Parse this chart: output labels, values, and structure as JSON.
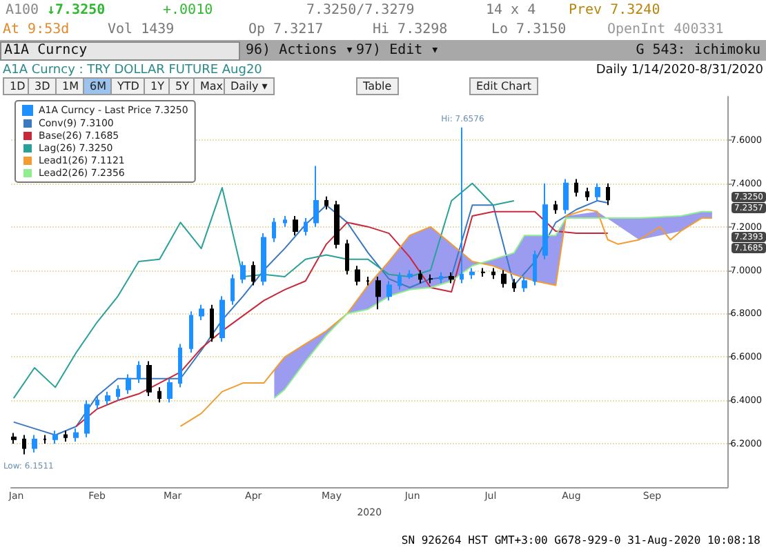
{
  "chart_data": {
    "type": "candlestick",
    "title": "A1A Curncy : TRY DOLLAR FUTURE Aug20",
    "subtitle": "Daily 1/14/2020-8/31/2020",
    "xlabel": "2020",
    "x": [
      "2020-01-14",
      "2020-01-18",
      "2020-01-22",
      "2020-01-26",
      "2020-01-30",
      "2020-02-03",
      "2020-02-07",
      "2020-02-11",
      "2020-02-15",
      "2020-02-19",
      "2020-02-23",
      "2020-02-27",
      "2020-03-02",
      "2020-03-06",
      "2020-03-10",
      "2020-03-14",
      "2020-03-18",
      "2020-03-22",
      "2020-03-26",
      "2020-03-30",
      "2020-04-03",
      "2020-04-07",
      "2020-04-11",
      "2020-04-15",
      "2020-04-19",
      "2020-04-23",
      "2020-04-27",
      "2020-05-01",
      "2020-05-05",
      "2020-05-09",
      "2020-05-13",
      "2020-05-17",
      "2020-05-21",
      "2020-05-25",
      "2020-05-29",
      "2020-06-02",
      "2020-06-06",
      "2020-06-10",
      "2020-06-14",
      "2020-06-18",
      "2020-06-22",
      "2020-06-26",
      "2020-06-30",
      "2020-07-04",
      "2020-07-08",
      "2020-07-12",
      "2020-07-16",
      "2020-07-20",
      "2020-07-24",
      "2020-07-28",
      "2020-08-01",
      "2020-08-05",
      "2020-08-09",
      "2020-08-13",
      "2020-08-17",
      "2020-08-21",
      "2020-08-25",
      "2020-08-29"
    ],
    "series": [
      {
        "name": "A1A Curncy - Last Price 7.3250",
        "color": "#1e90ff",
        "ohlc": [
          [
            6.23,
            6.25,
            6.2,
            6.22
          ],
          [
            6.22,
            6.24,
            6.1511,
            6.18
          ],
          [
            6.18,
            6.24,
            6.16,
            6.22
          ],
          [
            6.22,
            6.24,
            6.2,
            6.22
          ],
          [
            6.22,
            6.26,
            6.2,
            6.24
          ],
          [
            6.24,
            6.26,
            6.21,
            6.23
          ],
          [
            6.23,
            6.27,
            6.21,
            6.25
          ],
          [
            6.25,
            6.4,
            6.23,
            6.38
          ],
          [
            6.38,
            6.42,
            6.36,
            6.4
          ],
          [
            6.4,
            6.44,
            6.38,
            6.42
          ],
          [
            6.42,
            6.47,
            6.4,
            6.45
          ],
          [
            6.45,
            6.52,
            6.43,
            6.5
          ],
          [
            6.5,
            6.58,
            6.48,
            6.56
          ],
          [
            6.56,
            6.58,
            6.42,
            6.44
          ],
          [
            6.44,
            6.46,
            6.39,
            6.41
          ],
          [
            6.41,
            6.5,
            6.39,
            6.48
          ],
          [
            6.48,
            6.66,
            6.46,
            6.64
          ],
          [
            6.64,
            6.81,
            6.62,
            6.79
          ],
          [
            6.79,
            6.84,
            6.77,
            6.82
          ],
          [
            6.82,
            6.84,
            6.67,
            6.69
          ],
          [
            6.69,
            6.88,
            6.67,
            6.86
          ],
          [
            6.86,
            6.98,
            6.84,
            6.96
          ],
          [
            6.96,
            7.04,
            6.94,
            7.02
          ],
          [
            7.02,
            7.04,
            6.93,
            6.95
          ],
          [
            6.95,
            7.17,
            6.93,
            7.15
          ],
          [
            7.15,
            7.24,
            7.13,
            7.22
          ],
          [
            7.22,
            7.25,
            7.2,
            7.23
          ],
          [
            7.23,
            7.25,
            7.16,
            7.18
          ],
          [
            7.18,
            7.24,
            7.16,
            7.22
          ],
          [
            7.22,
            7.48,
            7.2,
            7.32
          ],
          [
            7.32,
            7.34,
            7.28,
            7.3
          ],
          [
            7.3,
            7.32,
            7.1,
            7.12
          ],
          [
            7.12,
            7.14,
            6.98,
            7.0
          ],
          [
            7.0,
            7.02,
            6.93,
            6.95
          ],
          [
            6.95,
            6.97,
            6.93,
            6.95
          ],
          [
            6.95,
            6.97,
            6.82,
            6.88
          ],
          [
            6.88,
            6.95,
            6.86,
            6.93
          ],
          [
            6.93,
            6.99,
            6.91,
            6.97
          ],
          [
            6.97,
            7.0,
            6.96,
            6.98
          ],
          [
            6.98,
            7.0,
            6.94,
            6.96
          ],
          [
            6.96,
            6.98,
            6.94,
            6.96
          ],
          [
            6.96,
            6.99,
            6.94,
            6.97
          ],
          [
            6.97,
            6.99,
            6.94,
            6.96
          ],
          [
            6.96,
            7.6576,
            6.94,
            6.98
          ],
          [
            6.98,
            7.01,
            6.96,
            6.99
          ],
          [
            6.99,
            7.01,
            6.97,
            6.99
          ],
          [
            6.99,
            7.01,
            6.96,
            6.98
          ],
          [
            6.98,
            7.0,
            6.92,
            6.94
          ],
          [
            6.94,
            6.96,
            6.9,
            6.92
          ],
          [
            6.92,
            6.97,
            6.9,
            6.95
          ],
          [
            6.95,
            7.09,
            6.93,
            7.07
          ],
          [
            7.07,
            7.4,
            7.05,
            7.3
          ],
          [
            7.3,
            7.32,
            7.26,
            7.28
          ],
          [
            7.28,
            7.42,
            7.26,
            7.4
          ],
          [
            7.4,
            7.42,
            7.34,
            7.36
          ],
          [
            7.36,
            7.38,
            7.32,
            7.34
          ],
          [
            7.34,
            7.4,
            7.32,
            7.38
          ],
          [
            7.38,
            7.4,
            7.3,
            7.325
          ]
        ],
        "colors": [
          "#000000",
          "#000000",
          "#1e90ff",
          "#000000",
          "#1e90ff",
          "#000000",
          "#1e90ff",
          "#1e90ff",
          "#1e90ff",
          "#1e90ff",
          "#1e90ff",
          "#1e90ff",
          "#1e90ff",
          "#000000",
          "#000000",
          "#1e90ff",
          "#1e90ff",
          "#1e90ff",
          "#1e90ff",
          "#000000",
          "#1e90ff",
          "#1e90ff",
          "#1e90ff",
          "#000000",
          "#1e90ff",
          "#1e90ff",
          "#1e90ff",
          "#000000",
          "#1e90ff",
          "#1e90ff",
          "#000000",
          "#000000",
          "#000000",
          "#000000",
          "#000000",
          "#000000",
          "#1e90ff",
          "#1e90ff",
          "#1e90ff",
          "#000000",
          "#000000",
          "#1e90ff",
          "#000000",
          "#1e90ff",
          "#1e90ff",
          "#000000",
          "#000000",
          "#000000",
          "#000000",
          "#1e90ff",
          "#1e90ff",
          "#1e90ff",
          "#000000",
          "#1e90ff",
          "#000000",
          "#000000",
          "#1e90ff",
          "#000000"
        ]
      },
      {
        "type": "line",
        "name": "Conv(9) 7.3100",
        "color": "#3a78c2",
        "x": [
          "2020-01-14",
          "2020-01-22",
          "2020-01-30",
          "2020-02-07",
          "2020-02-15",
          "2020-02-23",
          "2020-03-02",
          "2020-03-10",
          "2020-03-18",
          "2020-03-26",
          "2020-04-03",
          "2020-04-11",
          "2020-04-19",
          "2020-04-27",
          "2020-05-05",
          "2020-05-13",
          "2020-05-21",
          "2020-05-29",
          "2020-06-06",
          "2020-06-14",
          "2020-06-22",
          "2020-06-30",
          "2020-07-08",
          "2020-07-16",
          "2020-07-24",
          "2020-08-01",
          "2020-08-09",
          "2020-08-17",
          "2020-08-25",
          "2020-08-29"
        ],
        "values": [
          6.3,
          6.27,
          6.24,
          6.28,
          6.42,
          6.5,
          6.5,
          6.5,
          6.5,
          6.63,
          6.77,
          6.88,
          7.0,
          7.1,
          7.21,
          7.3,
          7.22,
          7.08,
          6.96,
          6.92,
          6.96,
          6.97,
          7.3,
          7.3,
          6.93,
          7.04,
          7.22,
          7.28,
          7.32,
          7.31
        ]
      },
      {
        "type": "line",
        "name": "Base(26) 7.1685",
        "color": "#c8283c",
        "x": [
          "2020-02-07",
          "2020-02-15",
          "2020-02-23",
          "2020-03-02",
          "2020-03-10",
          "2020-03-18",
          "2020-03-26",
          "2020-04-03",
          "2020-04-11",
          "2020-04-19",
          "2020-04-27",
          "2020-05-05",
          "2020-05-13",
          "2020-05-21",
          "2020-05-29",
          "2020-06-06",
          "2020-06-14",
          "2020-06-22",
          "2020-06-30",
          "2020-07-08",
          "2020-07-16",
          "2020-07-24",
          "2020-08-01",
          "2020-08-09",
          "2020-08-17",
          "2020-08-25",
          "2020-08-29"
        ],
        "values": [
          6.28,
          6.36,
          6.4,
          6.43,
          6.48,
          6.53,
          6.64,
          6.72,
          6.79,
          6.86,
          6.91,
          6.95,
          7.12,
          7.22,
          7.2,
          7.17,
          7.06,
          6.92,
          6.9,
          7.25,
          7.27,
          7.27,
          7.27,
          7.18,
          7.17,
          7.17,
          7.17
        ]
      },
      {
        "type": "line",
        "name": "Lag(26) 7.3250",
        "color": "#2aa198",
        "x": [
          "2020-01-14",
          "2020-01-22",
          "2020-01-30",
          "2020-02-07",
          "2020-02-15",
          "2020-02-23",
          "2020-03-02",
          "2020-03-10",
          "2020-03-18",
          "2020-03-26",
          "2020-04-03",
          "2020-04-11",
          "2020-04-19",
          "2020-04-27",
          "2020-05-05",
          "2020-05-13",
          "2020-05-21",
          "2020-05-29",
          "2020-06-06",
          "2020-06-14",
          "2020-06-22",
          "2020-06-30",
          "2020-07-08",
          "2020-07-16",
          "2020-07-24"
        ],
        "values": [
          6.41,
          6.55,
          6.46,
          6.62,
          6.76,
          6.88,
          7.04,
          7.05,
          7.22,
          7.1,
          7.38,
          6.97,
          6.98,
          6.97,
          7.05,
          7.07,
          7.05,
          7.05,
          6.98,
          6.97,
          7.0,
          7.32,
          7.4,
          7.3,
          7.32
        ]
      },
      {
        "type": "line",
        "name": "Lead1(26) 7.1121",
        "color": "#f39c32",
        "x": [
          "2020-03-18",
          "2020-03-26",
          "2020-04-03",
          "2020-04-11",
          "2020-04-19",
          "2020-04-27",
          "2020-05-05",
          "2020-05-13",
          "2020-05-21",
          "2020-05-29",
          "2020-06-06",
          "2020-06-14",
          "2020-06-22",
          "2020-06-30",
          "2020-07-08",
          "2020-07-16",
          "2020-07-24",
          "2020-08-01",
          "2020-08-09",
          "2020-08-13",
          "2020-08-21",
          "2020-08-25",
          "2020-08-29",
          "2020-09-02",
          "2020-09-10",
          "2020-09-18",
          "2020-09-22",
          "2020-09-26",
          "2020-10-04",
          "2020-10-08"
        ],
        "values": [
          6.28,
          6.34,
          6.44,
          6.48,
          6.48,
          6.6,
          6.66,
          6.72,
          6.8,
          6.93,
          7.04,
          7.16,
          7.2,
          7.12,
          7.04,
          7.02,
          6.98,
          6.95,
          6.93,
          7.25,
          7.28,
          7.27,
          7.14,
          7.12,
          7.14,
          7.2,
          7.14,
          7.18,
          7.24,
          7.24
        ]
      },
      {
        "type": "line",
        "name": "Lead2(26) 7.2356",
        "color": "#90ee90",
        "x": [
          "2020-04-23",
          "2020-04-27",
          "2020-05-05",
          "2020-05-13",
          "2020-05-21",
          "2020-05-29",
          "2020-06-06",
          "2020-06-14",
          "2020-06-22",
          "2020-06-30",
          "2020-07-08",
          "2020-07-16",
          "2020-07-24",
          "2020-07-28",
          "2020-08-05",
          "2020-08-09",
          "2020-08-13",
          "2020-08-25",
          "2020-09-10",
          "2020-09-26",
          "2020-10-04",
          "2020-10-08"
        ],
        "values": [
          6.41,
          6.45,
          6.58,
          6.7,
          6.8,
          6.82,
          6.88,
          6.91,
          6.92,
          6.95,
          7.02,
          7.05,
          7.08,
          7.16,
          7.16,
          7.16,
          7.24,
          7.24,
          7.24,
          7.25,
          7.27,
          7.27
        ],
        "lower": [
          6.41,
          6.45,
          6.58,
          6.7,
          6.8,
          6.82,
          6.88,
          6.91,
          6.92,
          6.95,
          7.02,
          7.05,
          7.08,
          7.16,
          7.16,
          7.16,
          7.24,
          7.24,
          7.24,
          7.25,
          7.27,
          7.27
        ],
        "upper": [
          6.54,
          6.6,
          6.66,
          6.72,
          6.8,
          6.93,
          7.04,
          7.16,
          7.2,
          7.12,
          7.04,
          7.02,
          6.98,
          6.96,
          6.94,
          6.93,
          7.25,
          7.27,
          7.14,
          7.18,
          7.24,
          7.24
        ]
      }
    ],
    "xlim": [
      "2020-01-13",
      "2020-10-14"
    ],
    "xticks": [
      {
        "value": "2020-01-15",
        "label": "Jan"
      },
      {
        "value": "2020-02-15",
        "label": "Feb"
      },
      {
        "value": "2020-03-15",
        "label": "Mar"
      },
      {
        "value": "2020-04-15",
        "label": "Apr"
      },
      {
        "value": "2020-05-15",
        "label": "May"
      },
      {
        "value": "2020-06-15",
        "label": "Jun"
      },
      {
        "value": "2020-07-15",
        "label": "Jul"
      },
      {
        "value": "2020-08-15",
        "label": "Aug"
      },
      {
        "value": "2020-09-15",
        "label": "Sep"
      }
    ],
    "ylim": [
      6.0,
      7.8
    ],
    "yticks": [
      {
        "value": 6.2,
        "label": "6.2000"
      },
      {
        "value": 6.4,
        "label": "6.4000"
      },
      {
        "value": 6.6,
        "label": "6.6000"
      },
      {
        "value": 6.8,
        "label": "6.8000"
      },
      {
        "value": 7.0,
        "label": "7.0000"
      },
      {
        "value": 7.2,
        "label": "7.2000"
      },
      {
        "value": 7.4,
        "label": "7.4000"
      },
      {
        "value": 7.6,
        "label": "7.6000"
      }
    ],
    "grid": "y",
    "legend": "top left",
    "marker": "none",
    "line_style": "solid",
    "annotations": [
      "A100",
      "↓7.3250",
      "+.0010",
      "7.3250/7.3279",
      "14 x 4",
      "Prev 7.3240",
      "At 9:53d",
      "Vol 1439",
      "Op 7.3217",
      "Hi 7.3298",
      "Lo 7.3150",
      "OpenInt 400331",
      "A1A Curncy",
      "96) Actions ▾",
      "97) Edit ▾",
      "G 543: ichimoku",
      "1D",
      "3D",
      "1M",
      "6M",
      "YTD",
      "1Y",
      "5Y",
      "Max",
      "Daily ▾",
      "Table",
      "Edit Chart",
      {
        "text": "Hi: 7.6576",
        "x": "2020-07-04",
        "y": 7.6576
      },
      {
        "text": "Low: 6.1511",
        "x": "2020-01-18",
        "y": 6.1511
      },
      "7.3250",
      "7.2357",
      "7.2393",
      "7.1685",
      "SN 926264 HST GMT+3:00 G678-929-0 31-Aug-2020 10:08:18"
    ]
  }
}
